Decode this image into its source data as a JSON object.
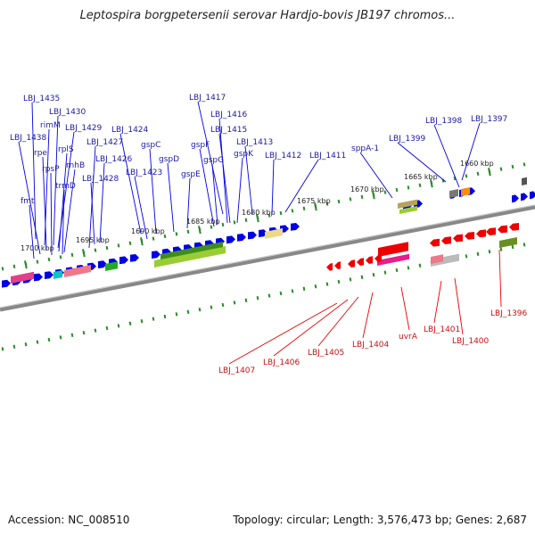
{
  "title": "Leptospira borgpetersenii serovar Hardjo-bovis JB197 chromos...",
  "footer": {
    "accession": "Accession: NC_008510",
    "summary": "Topology: circular; Length: 3,576,473 bp; Genes: 2,687"
  },
  "kbp_labels": [
    "1700 kbp",
    "1695 kbp",
    "1690 kbp",
    "1685 kbp",
    "1680 kbp",
    "1675 kbp",
    "1670 kbp",
    "1665 kbp",
    "1660 kbp"
  ],
  "colors": {
    "forward_strand": "#0000e6",
    "reverse_strand": "#ee0000",
    "forward_label": "#1a1aa6",
    "reverse_label": "#cc1111",
    "backbone": "#888888",
    "tick": "#2a8a2a"
  },
  "forward_genes": [
    "LBJ_1435",
    "rimM",
    "LBJ_1430",
    "LBJ_1429",
    "LBJ_1438",
    "rpe",
    "rplS",
    "LBJ_1427",
    "rnhB",
    "rpsP",
    "LBJ_1426",
    "trmD",
    "LBJ_1428",
    "fmt",
    "LBJ_1424",
    "gspC",
    "LBJ_1423",
    "gspD",
    "gspE",
    "LBJ_1417",
    "LBJ_1416",
    "LBJ_1415",
    "gspF",
    "gspG",
    "gspK",
    "LBJ_1413",
    "LBJ_1412",
    "LBJ_1411",
    "sppA-1",
    "LBJ_1399",
    "LBJ_1398",
    "LBJ_1397"
  ],
  "reverse_genes": [
    "LBJ_1407",
    "LBJ_1406",
    "LBJ_1405",
    "LBJ_1404",
    "uvrA",
    "LBJ_1401",
    "LBJ_1400",
    "LBJ_1396"
  ]
}
